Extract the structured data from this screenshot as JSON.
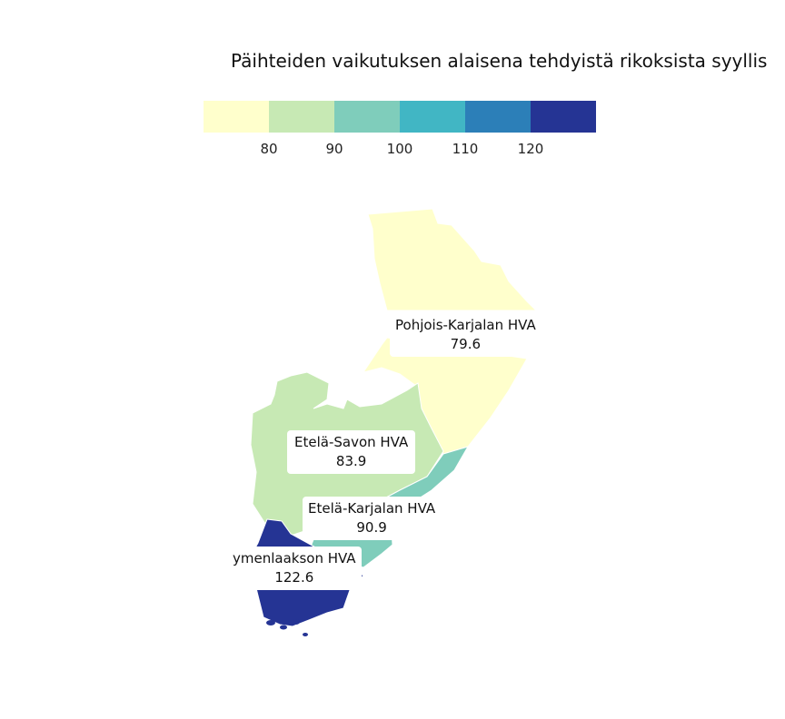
{
  "title": "Päihteiden vaikutuksen alaisena tehdyistä rikoksista syyllis",
  "legend": {
    "colors": [
      "#ffffcc",
      "#c7e9b4",
      "#7fcdbb",
      "#41b6c4",
      "#2c7fb8",
      "#253494"
    ],
    "ticks": [
      "80",
      "90",
      "100",
      "110",
      "120"
    ]
  },
  "regions": [
    {
      "name": "Pohjois-Karjalan HVA",
      "value": "79.6",
      "color": "#ffffcc"
    },
    {
      "name": "Etelä-Savon HVA",
      "value": "83.9",
      "color": "#c7e9b4"
    },
    {
      "name": "Etelä-Karjalan HVA",
      "value": "90.9",
      "color": "#7fcdbb"
    },
    {
      "name": "ymenlaakson HVA",
      "value": "122.6",
      "color": "#253494"
    }
  ]
}
